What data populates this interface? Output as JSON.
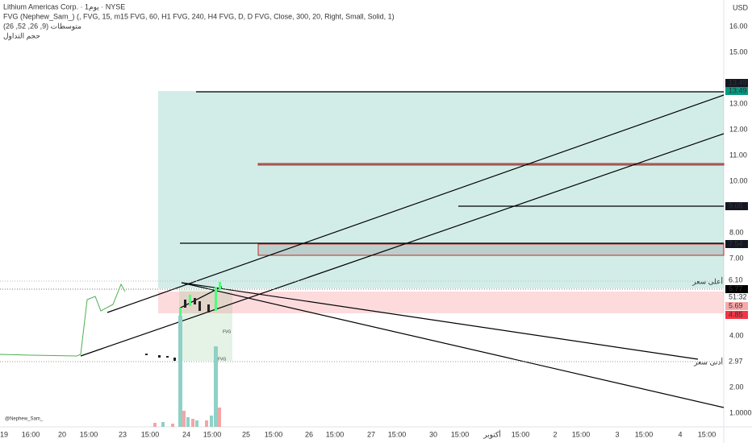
{
  "header": {
    "symbol": "Lithium Americas Corp. · 1يوم · NYSE",
    "indicator": "FVG (Nephew_Sam_) (, FVG, 15, m15 FVG, 60, H1 FVG, 240, H4 FVG, D, D FVG, Close, 300, 20, Right, Small, Solid, 1)",
    "averages": "متوسطات (9, 26, 52, 26)",
    "volume": "حجم التداول"
  },
  "currency": "USD",
  "price_axis": [
    "16.00",
    "15.00",
    "13.00",
    "12.00",
    "11.00",
    "10.00",
    "8.00",
    "7.00",
    "4.00",
    "2.00",
    "1.0000"
  ],
  "price_tags": [
    {
      "label": "13.49"
    },
    {
      "label": "13.49"
    },
    {
      "label": "9.05"
    },
    {
      "label": "7.54"
    },
    {
      "label": "6.10"
    },
    {
      "label": "5.77"
    },
    {
      "label": "51:32"
    },
    {
      "label": "5.69"
    },
    {
      "label": "4.85"
    },
    {
      "label": "2.97"
    }
  ],
  "time_axis": [
    "19",
    "16:00",
    "20",
    "15:00",
    "23",
    "15:00",
    "24",
    "15:00",
    "25",
    "15:00",
    "26",
    "15:00",
    "27",
    "15:00",
    "30",
    "15:00",
    "أكتوبر",
    "15:00",
    "2",
    "15:00",
    "3",
    "15:00",
    "4",
    "15:00"
  ],
  "annotations": {
    "high": "أعلى سعر",
    "low": "أدنى سعر",
    "fvg1": "FVG",
    "fvg2": "FVG",
    "watermark": "@Nephew_Sam_"
  }
}
